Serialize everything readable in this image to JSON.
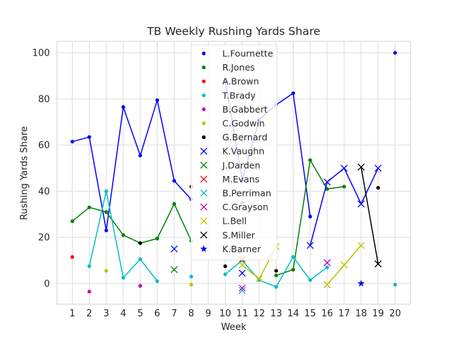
{
  "chart_data": {
    "type": "line",
    "title": "TB Weekly Rushing Yards Share",
    "xlabel": "Week",
    "ylabel": "Rushing Yards Share",
    "xlim": [
      0.1,
      20.9
    ],
    "ylim": [
      -9,
      105
    ],
    "xticks": [
      1,
      2,
      3,
      4,
      5,
      6,
      7,
      8,
      9,
      10,
      11,
      12,
      13,
      14,
      15,
      16,
      17,
      18,
      19,
      20
    ],
    "yticks": [
      0,
      20,
      40,
      60,
      80,
      100
    ],
    "grid": true,
    "legend": "upper-center",
    "series": [
      {
        "name": "L.Fournette",
        "color": "#0000ff",
        "marker": "dot",
        "points": [
          [
            1,
            61.5
          ],
          [
            2,
            63.5
          ],
          [
            3,
            23
          ],
          [
            4,
            76.5
          ],
          [
            5,
            55.5
          ],
          [
            6,
            79.5
          ],
          [
            7,
            44.5
          ],
          [
            8,
            36.5
          ],
          [
            10,
            88
          ],
          [
            11,
            45
          ],
          [
            12,
            71
          ],
          [
            13,
            77.5
          ],
          [
            14,
            82.5
          ],
          [
            15,
            29
          ],
          [
            20,
            100
          ]
        ]
      },
      {
        "name": "R.Jones",
        "color": "#008000",
        "marker": "dot",
        "points": [
          [
            1,
            27
          ],
          [
            2,
            33
          ],
          [
            3,
            31
          ],
          [
            4,
            21
          ],
          [
            5,
            17.5
          ],
          [
            6,
            19.5
          ],
          [
            7,
            34.5
          ],
          [
            8,
            18.5
          ],
          [
            11,
            35
          ],
          [
            13,
            3.5
          ],
          [
            14,
            6
          ],
          [
            15,
            53.5
          ],
          [
            16,
            41
          ],
          [
            17,
            42
          ]
        ]
      },
      {
        "name": "A.Brown",
        "color": "#ff0000",
        "marker": "dot",
        "points": [
          [
            1,
            11.5
          ]
        ]
      },
      {
        "name": "T.Brady",
        "color": "#00bfbf",
        "marker": "dot",
        "points": [
          [
            2,
            7.5
          ],
          [
            3,
            40
          ],
          [
            4,
            2.5
          ],
          [
            5,
            10.5
          ],
          [
            6,
            1
          ],
          [
            8,
            3
          ],
          [
            10,
            4
          ],
          [
            11,
            10
          ],
          [
            12,
            1.5
          ],
          [
            13,
            -1.5
          ],
          [
            14,
            11.5
          ],
          [
            15,
            1.5
          ],
          [
            16,
            7
          ],
          [
            20,
            -0.5
          ]
        ]
      },
      {
        "name": "B.Gabbert",
        "color": "#bf00bf",
        "marker": "dot",
        "points": [
          [
            2,
            -3.5
          ],
          [
            5,
            -1
          ]
        ]
      },
      {
        "name": "C.Godwin",
        "color": "#bfbf00",
        "marker": "dot",
        "points": [
          [
            3,
            5.5
          ],
          [
            8,
            -0.5
          ]
        ]
      },
      {
        "name": "G.Bernard",
        "color": "#000000",
        "marker": "dot",
        "points": [
          [
            5,
            17.5
          ],
          [
            8,
            42
          ],
          [
            10,
            7.5
          ],
          [
            13,
            5.5
          ],
          [
            19,
            41.5
          ]
        ]
      },
      {
        "name": "K.Vaughn",
        "color": "#0000ff",
        "marker": "x",
        "points": [
          [
            7,
            15
          ],
          [
            11,
            4.5
          ],
          [
            15,
            16.5
          ],
          [
            16,
            44
          ],
          [
            17,
            50
          ],
          [
            18,
            34.5
          ],
          [
            19,
            50
          ]
        ]
      },
      {
        "name": "J.Darden",
        "color": "#008000",
        "marker": "x",
        "points": [
          [
            7,
            6
          ]
        ]
      },
      {
        "name": "M.Evans",
        "color": "#ff0000",
        "marker": "x",
        "points": [
          [
            11,
            10.5
          ]
        ]
      },
      {
        "name": "B.Perriman",
        "color": "#00bfbf",
        "marker": "x",
        "points": [
          [
            11,
            -3
          ]
        ]
      },
      {
        "name": "C.Grayson",
        "color": "#bf00bf",
        "marker": "x",
        "points": [
          [
            11,
            -2
          ],
          [
            16,
            9
          ]
        ]
      },
      {
        "name": "L.Bell",
        "color": "#bfbf00",
        "marker": "x",
        "points": [
          [
            11,
            8
          ],
          [
            12,
            2
          ],
          [
            13,
            16
          ],
          [
            16,
            -0.5
          ],
          [
            17,
            8
          ],
          [
            18,
            16.5
          ]
        ]
      },
      {
        "name": "S.Miller",
        "color": "#000000",
        "marker": "x",
        "points": [
          [
            18,
            50.5
          ],
          [
            19,
            8.5
          ]
        ]
      },
      {
        "name": "K.Barner",
        "color": "#0000ff",
        "marker": "star",
        "points": [
          [
            18,
            0
          ]
        ]
      }
    ]
  }
}
